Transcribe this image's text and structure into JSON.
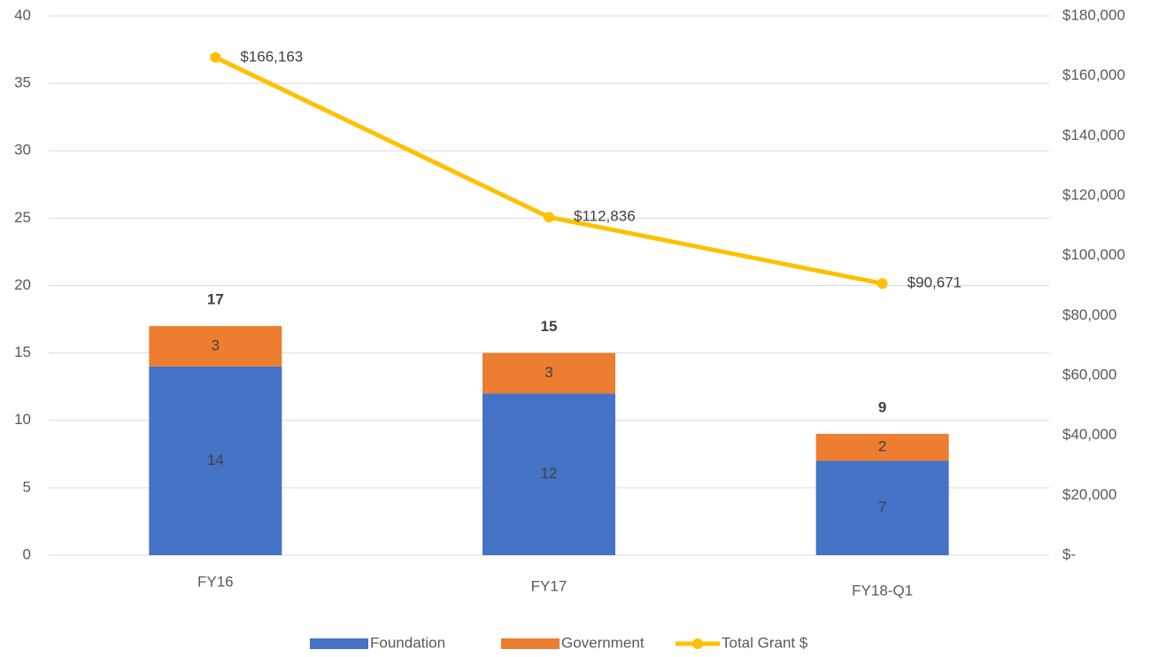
{
  "chart_data": {
    "type": "bar",
    "categories": [
      "FY16",
      "FY17",
      "FY18-Q1"
    ],
    "series": [
      {
        "name": "Foundation",
        "color": "#4472C4",
        "values": [
          14,
          12,
          7
        ]
      },
      {
        "name": "Government",
        "color": "#ED7D31",
        "values": [
          3,
          3,
          2
        ]
      },
      {
        "name": "Total Grant $",
        "color": "#FFC000",
        "type": "line",
        "axis": "y2",
        "values": [
          166163,
          112836,
          90671
        ],
        "value_labels": [
          "$166,163",
          "$112,836",
          "$90,671"
        ]
      }
    ],
    "totals": [
      17,
      15,
      9
    ],
    "stacked": true,
    "ylim": [
      0,
      40
    ],
    "yticks": [
      0,
      5,
      10,
      15,
      20,
      25,
      30,
      35,
      40
    ],
    "y2lim": [
      0,
      180000
    ],
    "y2ticks": [
      {
        "value": 0,
        "label": "$-"
      },
      {
        "value": 20000,
        "label": "$20,000"
      },
      {
        "value": 40000,
        "label": "$40,000"
      },
      {
        "value": 60000,
        "label": "$60,000"
      },
      {
        "value": 80000,
        "label": "$80,000"
      },
      {
        "value": 100000,
        "label": "$100,000"
      },
      {
        "value": 120000,
        "label": "$120,000"
      },
      {
        "value": 140000,
        "label": "$140,000"
      },
      {
        "value": 160000,
        "label": "$160,000"
      },
      {
        "value": 180000,
        "label": "$180,000"
      }
    ],
    "grid": true,
    "legend": "bottom"
  }
}
